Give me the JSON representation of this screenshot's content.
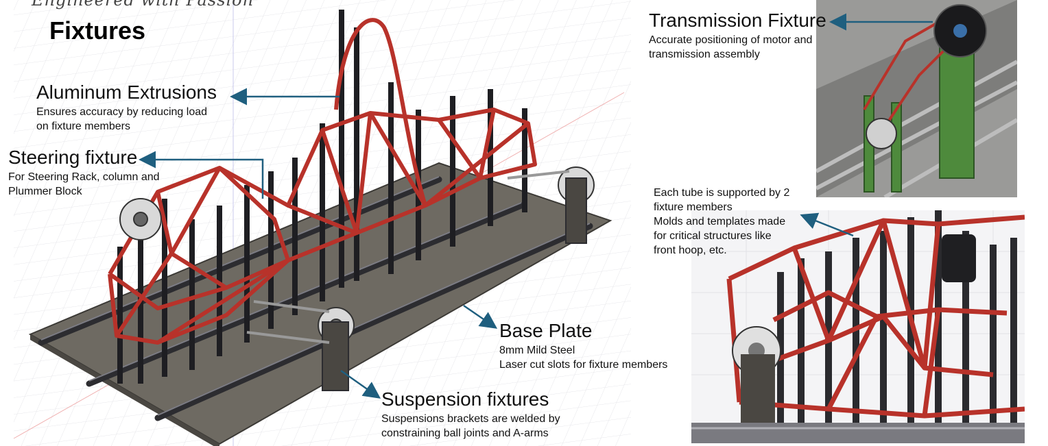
{
  "slide": {
    "tagline": "Engineered with Passion",
    "title": "Fixtures"
  },
  "callouts": {
    "aluminum": {
      "title": "Aluminum Extrusions",
      "lines": [
        "Ensures accuracy by reducing load",
        "on fixture members"
      ]
    },
    "steering": {
      "title": "Steering fixture",
      "lines": [
        "For Steering Rack, column and",
        "Plummer Block"
      ]
    },
    "base": {
      "title": "Base Plate",
      "lines": [
        "8mm Mild Steel",
        "Laser cut slots for fixture members"
      ]
    },
    "suspension": {
      "title": "Suspension fixtures",
      "lines": [
        "Suspensions brackets are welded by",
        "constraining ball joints and A-arms"
      ]
    },
    "transmission": {
      "title": "Transmission Fixture",
      "lines": [
        "Accurate positioning of motor and",
        "transmission assembly"
      ]
    },
    "tube": {
      "lines": [
        "Each tube is supported by 2",
        "fixture members",
        "Molds and templates made",
        "for critical structures like",
        "front hoop, etc."
      ]
    }
  },
  "colors": {
    "arrow": "#1f5f7f",
    "chassis": "#b8322a",
    "fixture": "#2a2a2e",
    "plate": "#6e6a62",
    "green": "#4e8a3c"
  }
}
